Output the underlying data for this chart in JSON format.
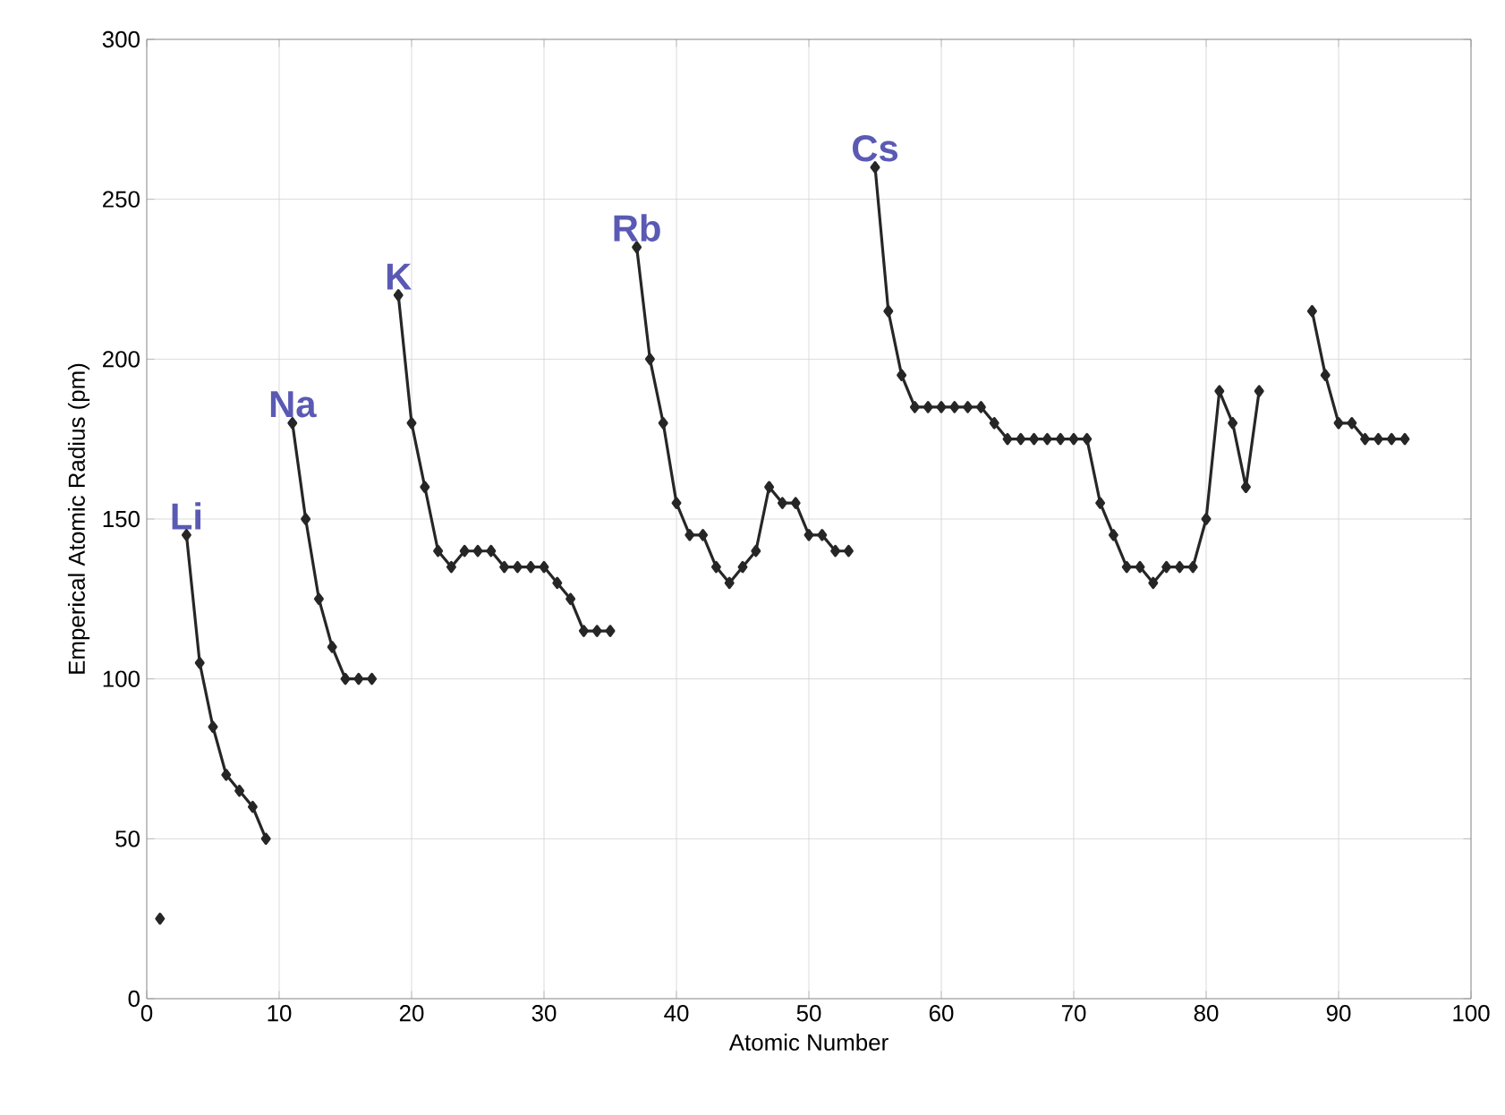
{
  "chart_data": {
    "type": "line",
    "xlabel": "Atomic Number",
    "ylabel": "Emperical Atomic Radius (pm)",
    "x": [
      1,
      2,
      3,
      4,
      5,
      6,
      7,
      8,
      9,
      10,
      11,
      12,
      13,
      14,
      15,
      16,
      17,
      18,
      19,
      20,
      21,
      22,
      23,
      24,
      25,
      26,
      27,
      28,
      29,
      30,
      31,
      32,
      33,
      34,
      35,
      36,
      37,
      38,
      39,
      40,
      41,
      42,
      43,
      44,
      45,
      46,
      47,
      48,
      49,
      50,
      51,
      52,
      53,
      54,
      55,
      56,
      57,
      58,
      59,
      60,
      61,
      62,
      63,
      64,
      65,
      66,
      67,
      68,
      69,
      70,
      71,
      72,
      73,
      74,
      75,
      76,
      77,
      78,
      79,
      80,
      81,
      82,
      83,
      84,
      85,
      86,
      87,
      88,
      89,
      90,
      91,
      92,
      93,
      94,
      95
    ],
    "values": [
      25,
      null,
      145,
      105,
      85,
      70,
      65,
      60,
      50,
      null,
      180,
      150,
      125,
      110,
      100,
      100,
      100,
      null,
      220,
      180,
      160,
      140,
      135,
      140,
      140,
      140,
      135,
      135,
      135,
      135,
      130,
      125,
      115,
      115,
      115,
      null,
      235,
      200,
      180,
      155,
      145,
      145,
      135,
      130,
      135,
      140,
      160,
      155,
      155,
      145,
      145,
      140,
      140,
      null,
      260,
      215,
      195,
      185,
      185,
      185,
      185,
      185,
      185,
      180,
      175,
      175,
      175,
      175,
      175,
      175,
      175,
      155,
      145,
      135,
      135,
      130,
      135,
      135,
      135,
      150,
      190,
      180,
      160,
      190,
      null,
      null,
      null,
      215,
      195,
      180,
      180,
      175,
      175,
      175,
      175
    ],
    "color": "#262626",
    "marker": "diamond",
    "line_style": "solid",
    "xlim": [
      0,
      100
    ],
    "ylim": [
      0,
      300
    ],
    "xticks": [
      0,
      10,
      20,
      30,
      40,
      50,
      60,
      70,
      80,
      90,
      100
    ],
    "yticks": [
      0,
      50,
      100,
      150,
      200,
      250,
      300
    ],
    "grid": true,
    "annotations": [
      {
        "text": "Li",
        "x": 3,
        "y": 145
      },
      {
        "text": "Na",
        "x": 11,
        "y": 180
      },
      {
        "text": "K",
        "x": 19,
        "y": 220
      },
      {
        "text": "Rb",
        "x": 37,
        "y": 235
      },
      {
        "text": "Cs",
        "x": 55,
        "y": 260
      }
    ]
  }
}
